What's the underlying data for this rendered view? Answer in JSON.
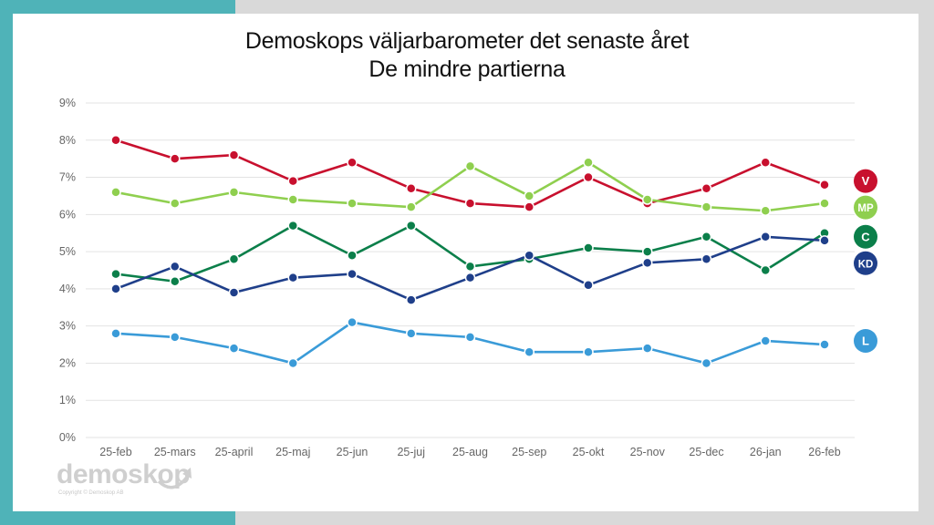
{
  "slide": {
    "title_line1": "Demoskops väljarbarometer det senaste året",
    "title_line2": "De mindre partierna",
    "logo_text": "demoskop",
    "logo_copyright": "Copyright © Demoskop AB"
  },
  "chart_data": {
    "type": "line",
    "title": "Demoskops väljarbarometer det senaste året",
    "subtitle": "De mindre partierna",
    "xlabel": "",
    "ylabel": "",
    "ylim": [
      0,
      9
    ],
    "grid": true,
    "legend_placement": "right",
    "y_ticks": [
      "0%",
      "1%",
      "2%",
      "3%",
      "4%",
      "5%",
      "6%",
      "7%",
      "8%",
      "9%"
    ],
    "categories": [
      "25-feb",
      "25-mars",
      "25-april",
      "25-maj",
      "25-jun",
      "25-juj",
      "25-aug",
      "25-sep",
      "25-okt",
      "25-nov",
      "25-dec",
      "26-jan",
      "26-feb"
    ],
    "series": [
      {
        "name": "V",
        "color": "#c8102e",
        "values": [
          8.0,
          7.5,
          7.6,
          6.9,
          7.4,
          6.7,
          6.3,
          6.2,
          7.0,
          6.3,
          6.7,
          7.4,
          6.8
        ]
      },
      {
        "name": "MP",
        "color": "#8fcf4f",
        "values": [
          6.6,
          6.3,
          6.6,
          6.4,
          6.3,
          6.2,
          7.3,
          6.5,
          7.4,
          6.4,
          6.2,
          6.1,
          6.3
        ]
      },
      {
        "name": "C",
        "color": "#0b7f4a",
        "values": [
          4.4,
          4.2,
          4.8,
          5.7,
          4.9,
          5.7,
          4.6,
          4.8,
          5.1,
          5.0,
          5.4,
          4.5,
          5.5
        ]
      },
      {
        "name": "KD",
        "color": "#1f3f8a",
        "values": [
          4.0,
          4.6,
          3.9,
          4.3,
          4.4,
          3.7,
          4.3,
          4.9,
          4.1,
          4.7,
          4.8,
          5.4,
          5.3
        ]
      },
      {
        "name": "L",
        "color": "#3a9bd8",
        "values": [
          2.8,
          2.7,
          2.4,
          2.0,
          3.1,
          2.8,
          2.7,
          2.3,
          2.3,
          2.4,
          2.0,
          2.6,
          2.5
        ]
      }
    ],
    "legend": [
      {
        "label": "V",
        "color": "#c8102e",
        "at_value": 6.9
      },
      {
        "label": "MP",
        "color": "#8fcf4f",
        "at_value": 6.2
      },
      {
        "label": "C",
        "color": "#0b7f4a",
        "at_value": 5.4
      },
      {
        "label": "KD",
        "color": "#1f3f8a",
        "at_value": 4.9
      },
      {
        "label": "L",
        "color": "#3a9bd8",
        "at_value": 2.6
      }
    ]
  }
}
